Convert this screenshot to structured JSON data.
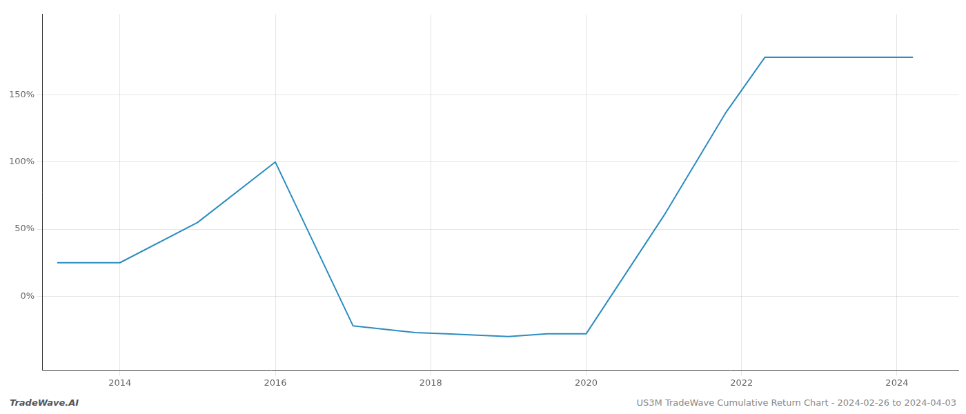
{
  "chart_data": {
    "type": "line",
    "x": [
      2013.2,
      2014.0,
      2015.0,
      2016.0,
      2017.0,
      2017.8,
      2018.2,
      2019.0,
      2019.5,
      2020.0,
      2021.0,
      2021.8,
      2022.3,
      2023.0,
      2024.2
    ],
    "values": [
      25,
      25,
      55,
      100,
      -22,
      -27,
      -28,
      -30,
      -28,
      -28,
      60,
      137,
      178,
      178,
      178
    ],
    "color": "#2b8cbe",
    "xlim": [
      2013.0,
      2024.8
    ],
    "xticks": [
      2014,
      2016,
      2018,
      2020,
      2022,
      2024
    ],
    "ylim": [
      -55,
      210
    ],
    "yticks": [
      {
        "value": 0,
        "label": "0%"
      },
      {
        "value": 50,
        "label": "50%"
      },
      {
        "value": 100,
        "label": "100%"
      },
      {
        "value": 150,
        "label": "150%"
      }
    ],
    "grid": true,
    "annotations": [
      "TradeWave.AI",
      "US3M TradeWave Cumulative Return Chart - 2024-02-26 to 2024-04-03"
    ]
  }
}
